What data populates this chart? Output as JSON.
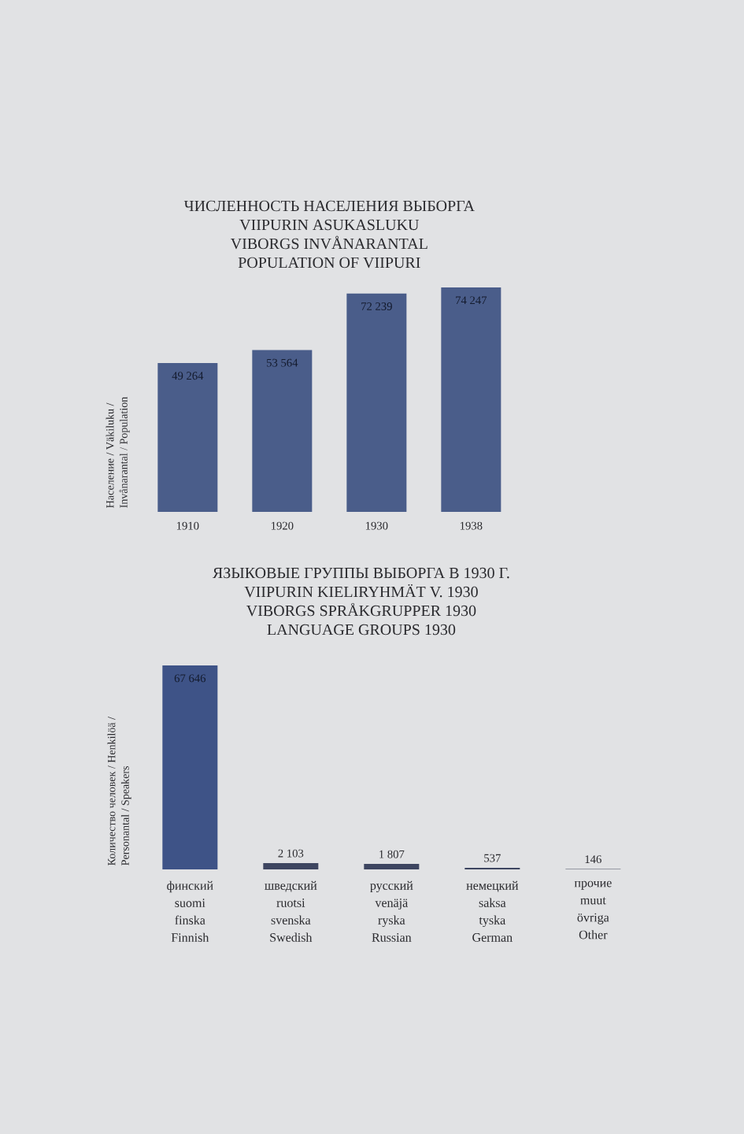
{
  "chart_data": [
    {
      "type": "bar",
      "title": "ЧИСЛЕННОСТЬ НАСЕЛЕНИЯ ВЫБОРГА\nVIIPURIN ASUKASLUKU\nVIBORGS INVÅNARANTAL\nPOPULATION OF VIIPURI",
      "ylabel": "Население / Väkiluku /\nInvånarantal / Population",
      "categories": [
        "1910",
        "1920",
        "1930",
        "1938"
      ],
      "values": [
        49264,
        53564,
        72239,
        74247
      ],
      "value_labels": [
        "49 264",
        "53 564",
        "72 239",
        "74 247"
      ],
      "color": "#4a5d8a",
      "tick_labels": "x"
    },
    {
      "type": "bar",
      "title": "ЯЗЫКОВЫЕ ГРУППЫ ВЫБОРГА В 1930 Г.\nVIIPURIN KIELIRYHMÄT V. 1930\nVIBORGS SPRÅKGRUPPER 1930\nLANGUAGE GROUPS 1930",
      "ylabel": "Количество человек / Henkilöä /\nPersonantal / Speakers",
      "categories": [
        "финский\nsuomi\nfinska\nFinnish",
        "шведский\nruotsi\nsvenska\nSwedish",
        "русский\nvenäjä\nryska\nRussian",
        "немецкий\nsaksa\ntyska\nGerman",
        "прочие\nmuut\növriga\nOther"
      ],
      "values": [
        67646,
        2103,
        1807,
        537,
        146
      ],
      "value_labels": [
        "67 646",
        "2 103",
        "1 807",
        "537",
        "146"
      ],
      "colors": [
        "#3e5387",
        "#3d4560",
        "#3d4560",
        "#3d4560",
        "#4a4f60"
      ],
      "tick_labels": "x"
    }
  ]
}
